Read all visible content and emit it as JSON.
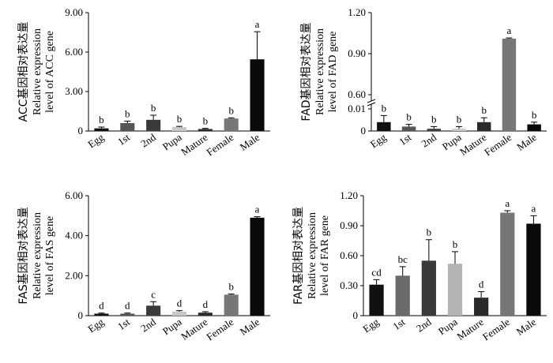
{
  "chart_data": [
    {
      "type": "bar",
      "panel": "ACC",
      "ylabel_cn": "ACC基因相对表达量",
      "ylabel_lines": [
        "Relative expression",
        "level of ACC gene"
      ],
      "categories": [
        "Egg",
        "1st",
        "2nd",
        "Pupa",
        "Mature",
        "Female",
        "Male"
      ],
      "values": [
        0.2,
        0.6,
        0.85,
        0.3,
        0.15,
        0.95,
        5.45
      ],
      "errors": [
        0.1,
        0.15,
        0.35,
        0.05,
        0.05,
        0.05,
        2.1
      ],
      "letters": [
        "b",
        "b",
        "b",
        "b",
        "b",
        "b",
        "a"
      ],
      "colors": [
        "#111111",
        "#555555",
        "#3a3a3a",
        "#c8c8c8",
        "#2a2a2a",
        "#777777",
        "#0a0a0a"
      ],
      "ylim": [
        0,
        9
      ],
      "yticks": [
        "0",
        "3.00",
        "6.00",
        "9.00"
      ],
      "ytick_values": [
        0,
        3,
        6,
        9
      ]
    },
    {
      "type": "bar",
      "panel": "FAD",
      "ylabel_cn": "FAD基因相对表达量",
      "ylabel_lines": [
        "Relative expression",
        "level of FAD gene"
      ],
      "categories": [
        "Egg",
        "1st",
        "2nd",
        "Pupa",
        "Mature",
        "Female",
        "Male"
      ],
      "values": [
        0.004,
        0.002,
        0.001,
        0.001,
        0.004,
        1.01,
        0.003
      ],
      "errors": [
        0.003,
        0.001,
        0.001,
        0.001,
        0.002,
        0.005,
        0.001
      ],
      "letters": [
        "b",
        "b",
        "b",
        "b",
        "b",
        "a",
        "b"
      ],
      "colors": [
        "#111111",
        "#555555",
        "#3a3a3a",
        "#c8c8c8",
        "#2a2a2a",
        "#777777",
        "#0a0a0a"
      ],
      "broken_axis": true,
      "ylim_lower": [
        0,
        0.01
      ],
      "ylim_upper": [
        0.6,
        1.2
      ],
      "yticks": [
        "0",
        "0.01",
        "0.60",
        "0.90",
        "1.20"
      ]
    },
    {
      "type": "bar",
      "panel": "FAS",
      "ylabel_cn": "FAS基因相对表达量",
      "ylabel_lines": [
        "Relative expression",
        "level of FAS gene"
      ],
      "categories": [
        "Egg",
        "1st",
        "2nd",
        "Pupa",
        "Mature",
        "Female",
        "Male"
      ],
      "values": [
        0.1,
        0.1,
        0.5,
        0.2,
        0.15,
        1.05,
        4.9
      ],
      "errors": [
        0.03,
        0.03,
        0.2,
        0.05,
        0.05,
        0.03,
        0.05
      ],
      "letters": [
        "d",
        "d",
        "c",
        "d",
        "d",
        "b",
        "a"
      ],
      "colors": [
        "#111111",
        "#555555",
        "#3a3a3a",
        "#c8c8c8",
        "#2a2a2a",
        "#777777",
        "#0a0a0a"
      ],
      "ylim": [
        0,
        6
      ],
      "yticks": [
        "0",
        "2.00",
        "4.00",
        "6.00"
      ],
      "ytick_values": [
        0,
        2,
        4,
        6
      ]
    },
    {
      "type": "bar",
      "panel": "FAR",
      "ylabel_cn": "FAR基因相对表达量",
      "ylabel_lines": [
        "Relative expression",
        "level of FAR gene"
      ],
      "categories": [
        "Egg",
        "1st",
        "2nd",
        "Pupa",
        "Mature",
        "Female",
        "Male"
      ],
      "values": [
        0.31,
        0.4,
        0.55,
        0.52,
        0.18,
        1.03,
        0.92
      ],
      "errors": [
        0.05,
        0.09,
        0.21,
        0.12,
        0.06,
        0.02,
        0.08
      ],
      "letters": [
        "cd",
        "bc",
        "b",
        "b",
        "d",
        "a",
        "a"
      ],
      "colors": [
        "#111111",
        "#6a6a6a",
        "#3a3a3a",
        "#b4b4b4",
        "#2a2a2a",
        "#777777",
        "#0a0a0a"
      ],
      "ylim": [
        0,
        1.2
      ],
      "yticks": [
        "0",
        "0.30",
        "0.60",
        "0.90",
        "1.20"
      ],
      "ytick_values": [
        0,
        0.3,
        0.6,
        0.9,
        1.2
      ]
    }
  ]
}
